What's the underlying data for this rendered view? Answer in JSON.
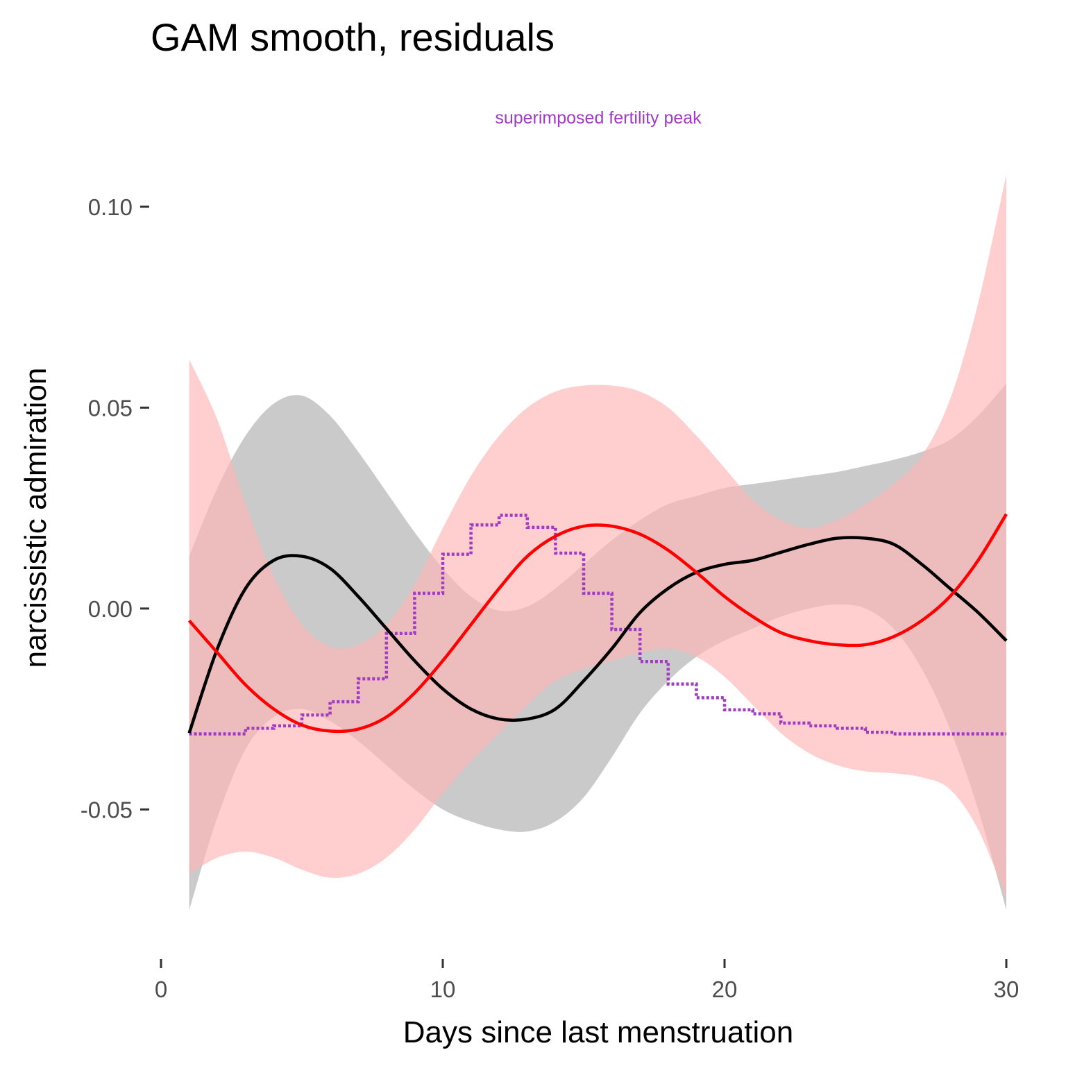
{
  "chart_data": {
    "type": "line",
    "title": "GAM smooth, residuals",
    "annotation": "superimposed fertility peak",
    "xlabel": "Days since last menstruation",
    "ylabel": "narcissistic admiration",
    "xlim": [
      0,
      30
    ],
    "ylim": [
      -0.08,
      0.11
    ],
    "x_ticks": [
      {
        "value": 0,
        "label": "0"
      },
      {
        "value": 10,
        "label": "10"
      },
      {
        "value": 20,
        "label": "20"
      },
      {
        "value": 30,
        "label": "30"
      }
    ],
    "y_ticks": [
      {
        "value": -0.05,
        "label": "-0.05"
      },
      {
        "value": 0,
        "label": "0.00"
      },
      {
        "value": 0.05,
        "label": "0.05"
      },
      {
        "value": 0.1,
        "label": "0.10"
      }
    ],
    "grid": false,
    "legend": "none",
    "colors": {
      "black_line": "#000000",
      "black_band": "#b3b3b3",
      "red_line": "#ff0000",
      "red_band": "#ffb3b3",
      "fertility": "#a23bc4"
    },
    "series": [
      {
        "x": [
          1,
          2,
          3,
          4,
          5,
          6,
          7,
          8,
          9,
          10,
          11,
          12,
          13,
          14,
          15,
          16,
          17,
          18,
          19,
          20,
          21,
          22,
          23,
          24,
          25,
          26,
          27,
          28,
          29,
          30
        ],
        "y": [
          -0.031,
          -0.01,
          0.005,
          0.012,
          0.013,
          0.01,
          0.003,
          -0.005,
          -0.013,
          -0.02,
          -0.025,
          -0.0275,
          -0.0275,
          -0.025,
          -0.018,
          -0.01,
          -0.001,
          0.005,
          0.009,
          0.011,
          0.012,
          0.014,
          0.016,
          0.0175,
          0.0175,
          0.016,
          0.011,
          0.005,
          -0.001,
          -0.008
        ],
        "lower": [
          -0.075,
          -0.052,
          -0.035,
          -0.027,
          -0.025,
          -0.028,
          -0.033,
          -0.039,
          -0.045,
          -0.05,
          -0.053,
          -0.055,
          -0.0555,
          -0.053,
          -0.047,
          -0.037,
          -0.026,
          -0.018,
          -0.012,
          -0.008,
          -0.005,
          -0.002,
          0.0,
          0.001,
          -0.0,
          -0.005,
          -0.015,
          -0.03,
          -0.05,
          -0.075
        ],
        "upper": [
          0.013,
          0.03,
          0.043,
          0.051,
          0.053,
          0.048,
          0.039,
          0.029,
          0.019,
          0.01,
          0.003,
          -0.0005,
          0.0005,
          0.005,
          0.011,
          0.017,
          0.022,
          0.026,
          0.028,
          0.03,
          0.031,
          0.032,
          0.033,
          0.034,
          0.0355,
          0.037,
          0.039,
          0.042,
          0.048,
          0.056
        ]
      },
      {
        "x": [
          1,
          2,
          3,
          4,
          5,
          6,
          7,
          8,
          9,
          10,
          11,
          12,
          13,
          14,
          15,
          16,
          17,
          18,
          19,
          20,
          21,
          22,
          23,
          24,
          25,
          26,
          27,
          28,
          29,
          30
        ],
        "y": [
          -0.003,
          -0.011,
          -0.019,
          -0.025,
          -0.029,
          -0.0305,
          -0.03,
          -0.027,
          -0.021,
          -0.013,
          -0.004,
          0.005,
          0.013,
          0.018,
          0.0205,
          0.0205,
          0.0185,
          0.0145,
          0.009,
          0.003,
          -0.002,
          -0.006,
          -0.008,
          -0.009,
          -0.009,
          -0.007,
          -0.003,
          0.003,
          0.012,
          0.0235
        ],
        "lower": [
          -0.066,
          -0.062,
          -0.0605,
          -0.062,
          -0.065,
          -0.067,
          -0.066,
          -0.062,
          -0.055,
          -0.046,
          -0.038,
          -0.031,
          -0.024,
          -0.018,
          -0.015,
          -0.013,
          -0.011,
          -0.01,
          -0.012,
          -0.017,
          -0.024,
          -0.031,
          -0.036,
          -0.039,
          -0.0405,
          -0.041,
          -0.042,
          -0.045,
          -0.055,
          -0.072
        ],
        "upper": [
          0.062,
          0.047,
          0.026,
          0.008,
          -0.004,
          -0.0095,
          -0.009,
          -0.004,
          0.006,
          0.02,
          0.033,
          0.043,
          0.05,
          0.054,
          0.0555,
          0.0555,
          0.054,
          0.05,
          0.043,
          0.035,
          0.027,
          0.022,
          0.02,
          0.022,
          0.026,
          0.031,
          0.038,
          0.052,
          0.076,
          0.108
        ]
      },
      {
        "type": "step",
        "x": [
          1,
          2,
          3,
          4,
          5,
          6,
          7,
          8,
          9,
          10,
          11,
          12,
          13,
          14,
          15,
          16,
          17,
          18,
          19,
          20,
          21,
          22,
          23,
          24,
          25,
          26,
          27,
          28,
          29,
          30
        ],
        "y": [
          -0.0312,
          -0.0312,
          -0.0298,
          -0.0292,
          -0.0265,
          -0.0232,
          -0.0175,
          -0.0062,
          0.0038,
          0.0135,
          0.0208,
          0.0232,
          0.0202,
          0.0138,
          0.0038,
          -0.0052,
          -0.0132,
          -0.0188,
          -0.0222,
          -0.0252,
          -0.0262,
          -0.0285,
          -0.0292,
          -0.0298,
          -0.0308,
          -0.0312,
          -0.0312,
          -0.0312,
          -0.0312,
          -0.0312
        ]
      }
    ]
  }
}
